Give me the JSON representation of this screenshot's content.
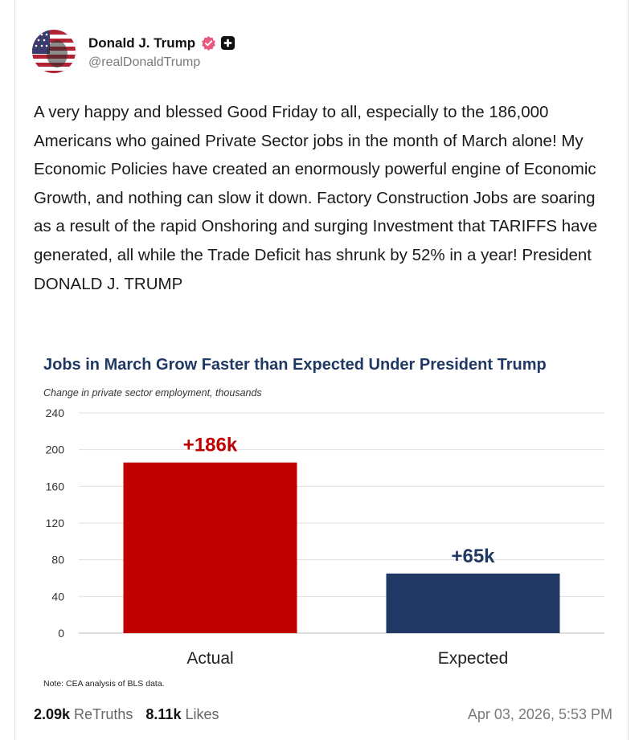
{
  "post": {
    "author": {
      "display_name": "Donald J. Trump",
      "handle": "@realDonaldTrump",
      "verified_icon": "verified-badge-icon",
      "badge_icon": "plus-badge-icon",
      "verified_color": "#e9587e"
    },
    "text": "A very happy and blessed Good Friday to all, especially to the 186,000 Americans who gained Private Sector jobs in the month of March alone! My Economic Policies have created an enormously powerful engine of Economic Growth, and nothing can slow it down. Factory Construction Jobs are soaring as a result of the rapid Onshoring and surging Investment that TARIFFS have generated, all while the Trade Deficit has shrunk by 52% in a year! President DONALD J. TRUMP",
    "stats": {
      "retruths_count": "2.09k",
      "retruths_label": "ReTruths",
      "likes_count": "8.11k",
      "likes_label": "Likes"
    },
    "timestamp": "Apr 03, 2026, 5:53 PM"
  },
  "chart_data": {
    "type": "bar",
    "title": "Jobs in March Grow Faster than Expected Under President Trump",
    "subtitle": "Change in private sector employment,  thousands",
    "categories": [
      "Actual",
      "Expected"
    ],
    "values": [
      186,
      65
    ],
    "data_labels": [
      "+186k",
      "+65k"
    ],
    "colors": [
      "#c00000",
      "#1f3864"
    ],
    "ylim": [
      0,
      240
    ],
    "yticks": [
      0,
      40,
      80,
      120,
      160,
      200,
      240
    ],
    "grid": true,
    "note": "Note: CEA analysis of BLS data.",
    "title_color": "#1f3864"
  }
}
